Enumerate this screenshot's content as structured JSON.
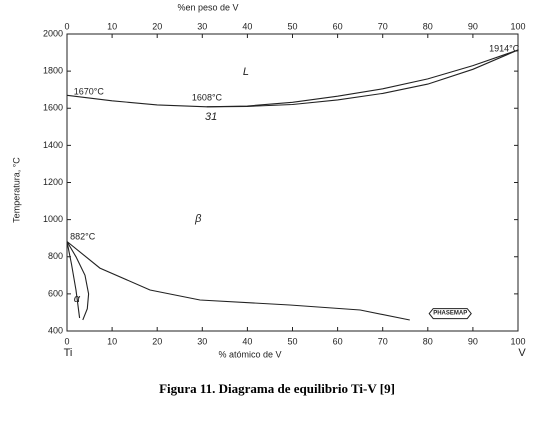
{
  "chart_data": {
    "type": "line",
    "caption": "Figura 11. Diagrama de equilibrio Ti-V [9]",
    "xlabel": "% atómico de V",
    "x2label": "%en peso de V",
    "ylabel": "Temperatura, °C",
    "x_end_labels": [
      "Ti",
      "V"
    ],
    "xlim": [
      0,
      100
    ],
    "xticks": [
      0,
      10,
      20,
      30,
      40,
      50,
      60,
      70,
      80,
      90,
      100
    ],
    "x2lim": [
      0,
      100
    ],
    "x2ticks": [
      0,
      10,
      20,
      30,
      40,
      50,
      60,
      70,
      80,
      90,
      100
    ],
    "ylim": [
      400,
      2000
    ],
    "yticks": [
      400,
      600,
      800,
      1000,
      1200,
      1400,
      1600,
      1800,
      2000
    ],
    "series": [
      {
        "color": "#222222",
        "x": [
          0,
          10,
          20,
          31,
          40,
          50,
          60,
          70,
          80,
          90,
          100
        ],
        "values": [
          1670,
          1640,
          1618,
          1608,
          1612,
          1632,
          1665,
          1705,
          1758,
          1830,
          1914
        ]
      },
      {
        "color": "#222222",
        "x": [
          31,
          40,
          50,
          60,
          70,
          80,
          90,
          100
        ],
        "values": [
          1608,
          1610,
          1620,
          1645,
          1680,
          1730,
          1810,
          1914
        ]
      },
      {
        "color": "#222222",
        "x": [
          0,
          7.3,
          18.4,
          29.5,
          49.4,
          65,
          76
        ],
        "values": [
          882,
          739,
          621,
          567,
          540,
          513,
          459
        ]
      },
      {
        "color": "#222222",
        "x": [
          0,
          1,
          2,
          2.8
        ],
        "values": [
          882,
          760,
          620,
          470
        ]
      },
      {
        "color": "#222222",
        "x": [
          0,
          2,
          4,
          4.8,
          4.5,
          3.5
        ],
        "values": [
          882,
          800,
          700,
          600,
          520,
          460
        ]
      }
    ],
    "annotations": [
      {
        "text": "1670°C",
        "x": 1.5,
        "y": 1687
      },
      {
        "text": "1608°C",
        "x": 27.7,
        "y": 1655
      },
      {
        "text": "31",
        "x": 30.6,
        "y": 1553
      },
      {
        "text": "1914°C",
        "x": 93.6,
        "y": 1919
      },
      {
        "text": "L",
        "x": 39,
        "y": 1795
      },
      {
        "text": "β",
        "x": 28.4,
        "y": 1003
      },
      {
        "text": "882°C",
        "x": 0.7,
        "y": 906
      },
      {
        "text": "α",
        "x": 1.5,
        "y": 572
      },
      {
        "text": "PHASEMAP",
        "x": 81.2,
        "y": 497
      }
    ]
  }
}
